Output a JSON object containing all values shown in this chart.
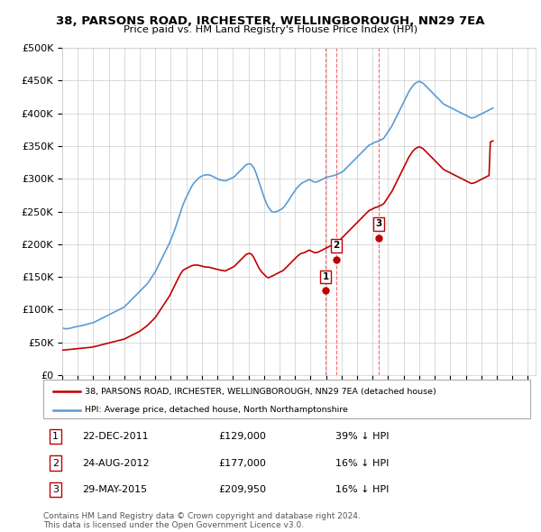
{
  "title": "38, PARSONS ROAD, IRCHESTER, WELLINGBOROUGH, NN29 7EA",
  "subtitle": "Price paid vs. HM Land Registry's House Price Index (HPI)",
  "ylabel_ticks": [
    "£0",
    "£50K",
    "£100K",
    "£150K",
    "£200K",
    "£250K",
    "£300K",
    "£350K",
    "£400K",
    "£450K",
    "£500K"
  ],
  "ytick_values": [
    0,
    50000,
    100000,
    150000,
    200000,
    250000,
    300000,
    350000,
    400000,
    450000,
    500000
  ],
  "xlim": [
    1995.0,
    2025.5
  ],
  "ylim": [
    0,
    500000
  ],
  "hpi_color": "#5b9bd5",
  "price_color": "#c00000",
  "marker_color": "#c00000",
  "vline_color": "#ff6666",
  "transactions": [
    {
      "label": "1",
      "date": "22-DEC-2011",
      "date_x": 2011.97,
      "price": 129000,
      "pct": "39% ↓ HPI"
    },
    {
      "label": "2",
      "date": "24-AUG-2012",
      "date_x": 2012.65,
      "price": 177000,
      "pct": "16% ↓ HPI"
    },
    {
      "label": "3",
      "date": "29-MAY-2015",
      "date_x": 2015.41,
      "price": 209950,
      "pct": "16% ↓ HPI"
    }
  ],
  "legend_house": "38, PARSONS ROAD, IRCHESTER, WELLINGBOROUGH, NN29 7EA (detached house)",
  "legend_hpi": "HPI: Average price, detached house, North Northamptonshire",
  "footnote": "Contains HM Land Registry data © Crown copyright and database right 2024.\nThis data is licensed under the Open Government Licence v3.0.",
  "hpi_data_y": [
    72000,
    71500,
    71000,
    70500,
    70800,
    71200,
    71500,
    72000,
    72500,
    73000,
    73500,
    74000,
    74500,
    74800,
    75000,
    75500,
    76000,
    76500,
    77000,
    77500,
    78000,
    78500,
    79000,
    79500,
    80000,
    81000,
    82000,
    83000,
    84000,
    85000,
    86000,
    87000,
    88000,
    89000,
    90000,
    91000,
    92000,
    93000,
    94000,
    95000,
    96000,
    97000,
    98000,
    99000,
    100000,
    101000,
    102000,
    103000,
    104000,
    106000,
    108000,
    110000,
    112000,
    114000,
    116000,
    118000,
    120000,
    122000,
    124000,
    126000,
    128000,
    130000,
    132000,
    134000,
    136000,
    138000,
    140000,
    143000,
    146000,
    149000,
    152000,
    155000,
    158000,
    162000,
    166000,
    170000,
    174000,
    178000,
    182000,
    186000,
    190000,
    194000,
    198000,
    202000,
    207000,
    212000,
    217000,
    222000,
    228000,
    234000,
    240000,
    246000,
    252000,
    258000,
    263000,
    268000,
    272000,
    276000,
    280000,
    284000,
    288000,
    291000,
    294000,
    296000,
    298000,
    300000,
    302000,
    303000,
    304000,
    305000,
    305500,
    306000,
    306000,
    306000,
    305500,
    305000,
    304000,
    303000,
    302000,
    301000,
    300000,
    299000,
    298000,
    298000,
    297500,
    297000,
    297000,
    297500,
    298000,
    299000,
    300000,
    301000,
    302000,
    303000,
    305000,
    307000,
    309000,
    311000,
    313000,
    315000,
    317000,
    319000,
    321000,
    322000,
    322500,
    323000,
    322000,
    320000,
    317000,
    313000,
    308000,
    302000,
    296000,
    290000,
    284000,
    278000,
    272000,
    267000,
    262000,
    258000,
    255000,
    252000,
    250000,
    249000,
    249000,
    249500,
    250000,
    251000,
    252000,
    253000,
    254000,
    256000,
    258000,
    261000,
    264000,
    267000,
    270000,
    273000,
    276000,
    279000,
    282000,
    285000,
    287000,
    289000,
    291000,
    293000,
    294000,
    295000,
    296000,
    297000,
    298000,
    299000,
    298000,
    297000,
    296000,
    295000,
    295000,
    295500,
    296000,
    297000,
    298000,
    299000,
    300000,
    301000,
    302000,
    302500,
    303000,
    303500,
    304000,
    304500,
    305000,
    305500,
    306000,
    307000,
    308000,
    309000,
    310000,
    311000,
    313000,
    315000,
    317000,
    319000,
    321000,
    323000,
    325000,
    327000,
    329000,
    331000,
    333000,
    335000,
    337000,
    339000,
    341000,
    343000,
    345000,
    347000,
    349000,
    351000,
    352000,
    353000,
    354000,
    355000,
    356000,
    356500,
    357000,
    358000,
    359000,
    360000,
    361000,
    363000,
    366000,
    369000,
    372000,
    375000,
    378000,
    381000,
    385000,
    389000,
    393000,
    397000,
    401000,
    405000,
    409000,
    413000,
    417000,
    421000,
    425000,
    429000,
    433000,
    436000,
    439000,
    442000,
    444000,
    446000,
    447000,
    448000,
    449000,
    448000,
    447000,
    446000,
    444000,
    442000,
    440000,
    438000,
    436000,
    434000,
    432000,
    430000,
    428000,
    426000,
    424000,
    422000,
    420000,
    418000,
    416000,
    414000,
    413000,
    412000,
    411000,
    410000,
    409000,
    408000,
    407000,
    406000,
    405000,
    404000,
    403000,
    402000,
    401000,
    400000,
    399000,
    398000,
    397000,
    396000,
    395000,
    394000,
    393000,
    393000,
    393500,
    394000,
    395000,
    396000,
    397000,
    398000,
    399000,
    400000,
    401000,
    402000,
    403000,
    404000,
    405000,
    406000,
    407000,
    408000
  ],
  "price_data_y": [
    38000,
    38200,
    38400,
    38600,
    38800,
    39000,
    39200,
    39400,
    39600,
    39800,
    40000,
    40200,
    40400,
    40600,
    40800,
    41000,
    41200,
    41400,
    41600,
    41800,
    42000,
    42200,
    42400,
    42600,
    43000,
    43500,
    44000,
    44500,
    45000,
    45500,
    46000,
    46500,
    47000,
    47500,
    48000,
    48500,
    49000,
    49500,
    50000,
    50500,
    51000,
    51500,
    52000,
    52500,
    53000,
    53500,
    54000,
    54500,
    55000,
    56000,
    57000,
    58000,
    59000,
    60000,
    61000,
    62000,
    63000,
    64000,
    65000,
    66000,
    67000,
    68500,
    70000,
    71500,
    73000,
    74500,
    76000,
    78000,
    80000,
    82000,
    84000,
    86000,
    88000,
    91000,
    94000,
    97000,
    100000,
    103000,
    106000,
    109000,
    112000,
    115000,
    118000,
    121000,
    125000,
    129000,
    133000,
    137000,
    141000,
    145000,
    149000,
    153000,
    156000,
    159000,
    161000,
    162000,
    163000,
    164000,
    165000,
    166000,
    167000,
    167500,
    168000,
    168000,
    168000,
    168000,
    167500,
    167000,
    166500,
    166000,
    165500,
    165000,
    165000,
    165000,
    164500,
    164000,
    163500,
    163000,
    162500,
    162000,
    161500,
    161000,
    160500,
    160000,
    160000,
    159500,
    159000,
    160000,
    161000,
    162000,
    163000,
    164000,
    165000,
    166000,
    168000,
    170000,
    172000,
    174000,
    176000,
    178000,
    180000,
    182000,
    184000,
    185000,
    185500,
    186000,
    185000,
    183000,
    180000,
    176000,
    172000,
    168000,
    164000,
    161000,
    158000,
    156000,
    154000,
    152000,
    150000,
    149000,
    149000,
    150000,
    151000,
    152000,
    153000,
    154000,
    155000,
    156000,
    157000,
    158000,
    159000,
    160000,
    162000,
    164000,
    166000,
    168000,
    170000,
    172000,
    174000,
    176000,
    178000,
    180000,
    182000,
    183500,
    185000,
    186000,
    186500,
    187000,
    188000,
    189000,
    190000,
    191000,
    190000,
    189000,
    188000,
    187000,
    187000,
    187500,
    188000,
    189000,
    190000,
    191000,
    192000,
    193000,
    194000,
    195000,
    196000,
    197000,
    198000,
    199000,
    200000,
    201000,
    202000,
    203000,
    205000,
    207000,
    209000,
    211000,
    213000,
    215000,
    217000,
    219000,
    221000,
    223000,
    225000,
    227000,
    229000,
    231000,
    233000,
    235000,
    237000,
    239000,
    241000,
    243000,
    245000,
    247000,
    249000,
    251000,
    252000,
    253000,
    254000,
    255000,
    256000,
    256500,
    257000,
    258000,
    259000,
    260000,
    261000,
    263000,
    266000,
    269000,
    272000,
    275000,
    278000,
    281000,
    285000,
    289000,
    293000,
    297000,
    301000,
    305000,
    309000,
    313000,
    317000,
    321000,
    325000,
    329000,
    333000,
    336000,
    339000,
    342000,
    344000,
    346000,
    347000,
    348000,
    349000,
    348000,
    347000,
    346000,
    344000,
    342000,
    340000,
    338000,
    336000,
    334000,
    332000,
    330000,
    328000,
    326000,
    324000,
    322000,
    320000,
    318000,
    316000,
    314000,
    313000,
    312000,
    311000,
    310000,
    309000,
    308000,
    307000,
    306000,
    305000,
    304000,
    303000,
    302000,
    301000,
    300000,
    299000,
    298000,
    297000,
    296000,
    295000,
    294000,
    293000,
    293000,
    293500,
    294000,
    295000,
    296000,
    297000,
    298000,
    299000,
    300000,
    301000,
    302000,
    303000,
    304000,
    305000,
    356000,
    357000,
    358000
  ]
}
